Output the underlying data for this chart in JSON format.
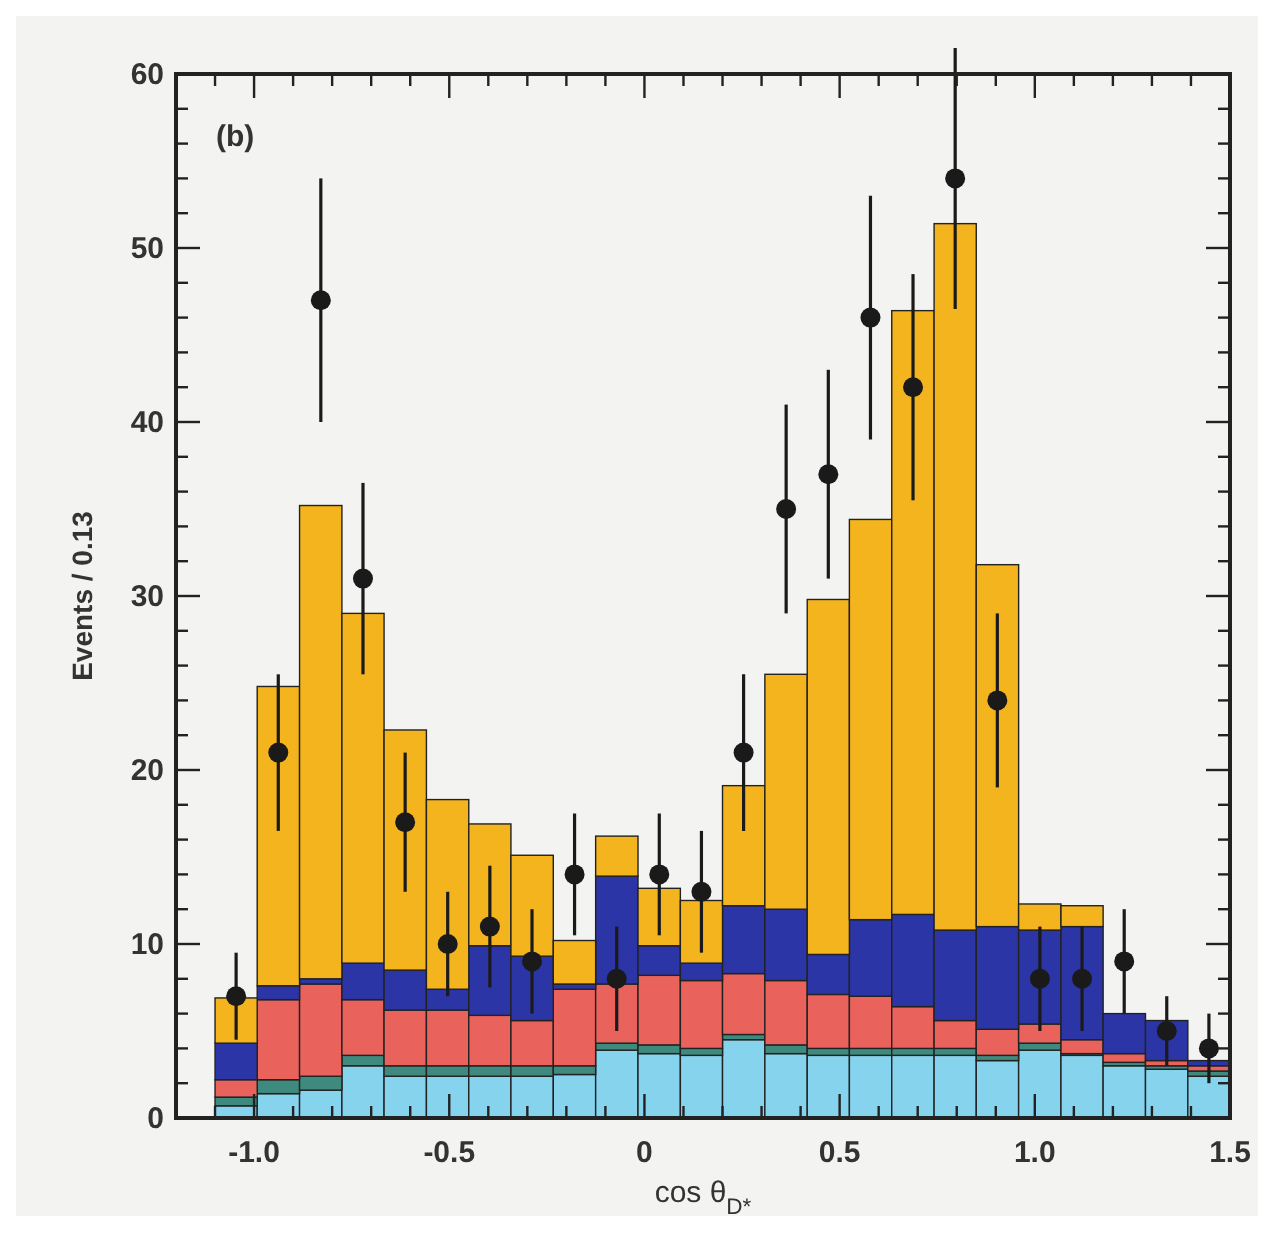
{
  "chart_data": {
    "type": "bar",
    "xlabel": "cos θ$_{D*}$",
    "ylabel": "Events / 0.13",
    "annotations": [
      "(b)"
    ],
    "x": [
      -1.046,
      -0.938,
      -0.829,
      -0.721,
      -0.613,
      -0.504,
      -0.396,
      -0.288,
      -0.179,
      -0.071,
      0.038,
      0.146,
      0.254,
      0.363,
      0.471,
      0.579,
      0.688,
      0.796,
      0.904,
      1.013,
      1.121,
      1.229,
      1.338,
      1.446
    ],
    "stacked": true,
    "grid": false,
    "xlim": [
      -1.2,
      1.5
    ],
    "ylim": [
      0,
      60
    ],
    "xticks": [
      {
        "value": -1.2,
        "label": null
      },
      {
        "value": -1.1,
        "label": null
      },
      {
        "value": -1,
        "label": "-1.0"
      },
      {
        "value": -0.9,
        "label": null
      },
      {
        "value": -0.8,
        "label": null
      },
      {
        "value": -0.7,
        "label": null
      },
      {
        "value": -0.6,
        "label": null
      },
      {
        "value": -0.5,
        "label": "-0.5"
      },
      {
        "value": -0.4,
        "label": null
      },
      {
        "value": -0.3,
        "label": null
      },
      {
        "value": -0.2,
        "label": null
      },
      {
        "value": -0.1,
        "label": null
      },
      0,
      {
        "value": 0.1,
        "label": null
      },
      {
        "value": 0.2,
        "label": null
      },
      {
        "value": 0.3,
        "label": null
      },
      {
        "value": 0.4,
        "label": null
      },
      0.5,
      {
        "value": 0.6,
        "label": null
      },
      {
        "value": 0.7,
        "label": null
      },
      {
        "value": 0.8,
        "label": null
      },
      {
        "value": 0.9,
        "label": null
      },
      {
        "value": 1,
        "label": "1.0"
      },
      {
        "value": 1.1,
        "label": null
      },
      {
        "value": 1.2,
        "label": null
      },
      {
        "value": 1.3,
        "label": null
      },
      {
        "value": 1.4,
        "label": null
      },
      1.5
    ],
    "yticks": [
      0,
      {
        "value": 2,
        "label": null
      },
      {
        "value": 4,
        "label": null
      },
      {
        "value": 6,
        "label": null
      },
      {
        "value": 8,
        "label": null
      },
      10,
      {
        "value": 12,
        "label": null
      },
      {
        "value": 14,
        "label": null
      },
      {
        "value": 16,
        "label": null
      },
      {
        "value": 18,
        "label": null
      },
      20,
      {
        "value": 22,
        "label": null
      },
      {
        "value": 24,
        "label": null
      },
      {
        "value": 26,
        "label": null
      },
      {
        "value": 28,
        "label": null
      },
      30,
      {
        "value": 32,
        "label": null
      },
      {
        "value": 34,
        "label": null
      },
      {
        "value": 36,
        "label": null
      },
      {
        "value": 38,
        "label": null
      },
      40,
      {
        "value": 42,
        "label": null
      },
      {
        "value": 44,
        "label": null
      },
      {
        "value": 46,
        "label": null
      },
      {
        "value": 48,
        "label": null
      },
      50,
      {
        "value": 52,
        "label": null
      },
      {
        "value": 54,
        "label": null
      },
      {
        "value": 56,
        "label": null
      },
      {
        "value": 58,
        "label": null
      },
      60
    ],
    "series": [
      {
        "color": "#86d3ee",
        "values": [
          0.7,
          1.4,
          1.6,
          3.0,
          2.4,
          2.4,
          2.4,
          2.4,
          2.5,
          3.9,
          3.7,
          3.6,
          4.5,
          3.7,
          3.6,
          3.6,
          3.6,
          3.6,
          3.3,
          3.9,
          3.6,
          3.0,
          2.8,
          2.4
        ]
      },
      {
        "color": "#3f8a7e",
        "values": [
          0.5,
          0.8,
          0.8,
          0.6,
          0.6,
          0.6,
          0.6,
          0.6,
          0.5,
          0.4,
          0.5,
          0.4,
          0.3,
          0.5,
          0.4,
          0.4,
          0.4,
          0.4,
          0.3,
          0.4,
          0.1,
          0.2,
          0.2,
          0.3
        ]
      },
      {
        "color": "#e9635c",
        "values": [
          1.0,
          4.6,
          5.3,
          3.2,
          3.2,
          3.2,
          2.9,
          2.6,
          4.4,
          3.4,
          4.0,
          3.9,
          3.5,
          3.7,
          3.1,
          3.0,
          2.4,
          1.6,
          1.5,
          1.1,
          0.8,
          0.5,
          0.3,
          0.3
        ]
      },
      {
        "color": "#2b35a6",
        "values": [
          2.1,
          0.8,
          0.3,
          2.1,
          2.3,
          1.2,
          4.0,
          3.7,
          0.3,
          6.2,
          1.7,
          1.0,
          3.9,
          4.1,
          2.3,
          4.4,
          5.3,
          5.2,
          5.9,
          5.4,
          6.5,
          2.3,
          2.3,
          0.3
        ]
      },
      {
        "color": "#f4b41e",
        "values": [
          2.6,
          17.2,
          27.2,
          20.1,
          13.8,
          10.9,
          7.0,
          5.8,
          2.5,
          2.3,
          3.3,
          3.6,
          6.9,
          13.5,
          20.4,
          23.0,
          34.7,
          40.6,
          20.8,
          1.5,
          1.2,
          0,
          0,
          0
        ]
      },
      {
        "type": "scatter",
        "color": "#1a1a1a",
        "marker": "circle",
        "values": [
          7,
          21,
          47,
          31,
          17,
          10,
          11,
          9,
          14,
          8,
          14,
          13,
          21,
          35,
          37,
          46,
          42,
          54,
          24,
          8,
          8,
          9,
          5,
          4
        ],
        "errors": [
          2.5,
          4.5,
          7,
          5.5,
          4,
          3,
          3.5,
          3,
          3.5,
          3,
          3.5,
          3.5,
          4.5,
          6,
          6,
          7,
          6.5,
          7.5,
          5,
          3,
          3,
          3,
          2,
          2
        ]
      }
    ]
  }
}
